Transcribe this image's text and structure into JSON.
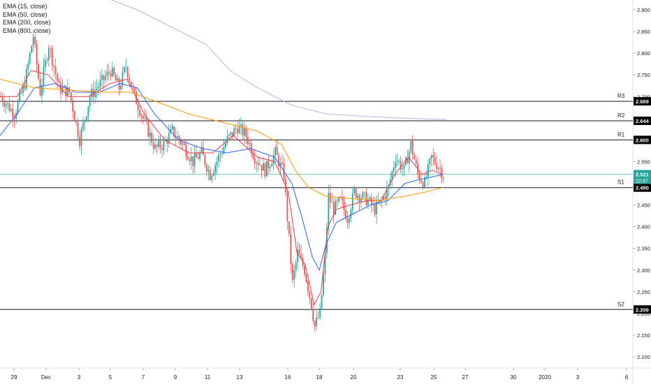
{
  "legend": [
    "EMA (15, close)",
    "EMA (50, close)",
    "EMA (200, close)",
    "EMA (800, close)"
  ],
  "chart_data": {
    "type": "candlestick",
    "ylim": [
      2.07,
      2.93
    ],
    "y_ticks": [
      "2.100",
      "2.150",
      "2.200",
      "2.250",
      "2.300",
      "2.350",
      "2.400",
      "2.450",
      "2.500",
      "2.550",
      "2.600",
      "2.650",
      "2.700",
      "2.750",
      "2.800",
      "2.850",
      "2.900"
    ],
    "x_ticks": [
      "29",
      "Dec",
      "3",
      "5",
      "7",
      "9",
      "11",
      "13",
      "16",
      "18",
      "20",
      "23",
      "25",
      "27",
      "30",
      "2020",
      "3",
      "6"
    ],
    "grid": false,
    "legend_position": "top-left",
    "levels": [
      {
        "name": "R3",
        "value": 2.689,
        "label": "2.689"
      },
      {
        "name": "R2",
        "value": 2.644,
        "label": "2.644"
      },
      {
        "name": "R1",
        "value": 2.6,
        "label": "2.600"
      },
      {
        "name": "S1",
        "value": 2.49,
        "label": "2.490"
      },
      {
        "name": "S2",
        "value": 2.209,
        "label": "2.209"
      }
    ],
    "last_price": {
      "value": 2.521,
      "label": "2.521",
      "countdown": "22:37"
    },
    "price_path": [
      [
        0,
        2.7
      ],
      [
        8,
        2.66
      ],
      [
        14,
        2.73
      ],
      [
        19,
        2.84
      ],
      [
        23,
        2.71
      ],
      [
        28,
        2.82
      ],
      [
        34,
        2.72
      ],
      [
        40,
        2.71
      ],
      [
        46,
        2.6
      ],
      [
        52,
        2.7
      ],
      [
        58,
        2.73
      ],
      [
        64,
        2.76
      ],
      [
        69,
        2.72
      ],
      [
        73,
        2.77
      ],
      [
        78,
        2.7
      ],
      [
        84,
        2.64
      ],
      [
        90,
        2.58
      ],
      [
        95,
        2.59
      ],
      [
        100,
        2.62
      ],
      [
        106,
        2.59
      ],
      [
        112,
        2.55
      ],
      [
        117,
        2.57
      ],
      [
        122,
        2.52
      ],
      [
        127,
        2.56
      ],
      [
        132,
        2.6
      ],
      [
        138,
        2.63
      ],
      [
        143,
        2.61
      ],
      [
        148,
        2.56
      ],
      [
        154,
        2.53
      ],
      [
        160,
        2.57
      ],
      [
        165,
        2.52
      ],
      [
        170,
        2.27
      ],
      [
        173,
        2.34
      ],
      [
        177,
        2.3
      ],
      [
        181,
        2.22
      ],
      [
        183,
        2.17
      ],
      [
        186,
        2.2
      ],
      [
        189,
        2.33
      ],
      [
        191,
        2.47
      ],
      [
        194,
        2.44
      ],
      [
        198,
        2.46
      ],
      [
        202,
        2.42
      ],
      [
        206,
        2.48
      ],
      [
        210,
        2.47
      ],
      [
        214,
        2.46
      ],
      [
        218,
        2.44
      ],
      [
        222,
        2.46
      ],
      [
        226,
        2.49
      ],
      [
        230,
        2.56
      ],
      [
        235,
        2.53
      ],
      [
        239,
        2.59
      ],
      [
        243,
        2.52
      ],
      [
        247,
        2.5
      ],
      [
        251,
        2.56
      ],
      [
        255,
        2.54
      ],
      [
        258,
        2.52
      ]
    ],
    "series": [
      {
        "name": "EMA (15, close)",
        "color": "#f23645",
        "points": [
          [
            0,
            2.7
          ],
          [
            10,
            2.7
          ],
          [
            18,
            2.76
          ],
          [
            28,
            2.75
          ],
          [
            40,
            2.7
          ],
          [
            52,
            2.7
          ],
          [
            64,
            2.73
          ],
          [
            74,
            2.74
          ],
          [
            84,
            2.66
          ],
          [
            96,
            2.6
          ],
          [
            110,
            2.57
          ],
          [
            124,
            2.57
          ],
          [
            136,
            2.61
          ],
          [
            150,
            2.56
          ],
          [
            160,
            2.55
          ],
          [
            168,
            2.48
          ],
          [
            173,
            2.34
          ],
          [
            178,
            2.31
          ],
          [
            183,
            2.22
          ],
          [
            187,
            2.25
          ],
          [
            191,
            2.4
          ],
          [
            196,
            2.44
          ],
          [
            204,
            2.45
          ],
          [
            214,
            2.46
          ],
          [
            222,
            2.46
          ],
          [
            230,
            2.52
          ],
          [
            238,
            2.56
          ],
          [
            246,
            2.52
          ],
          [
            252,
            2.53
          ],
          [
            258,
            2.52
          ]
        ]
      },
      {
        "name": "EMA (50, close)",
        "color": "#2962ff",
        "points": [
          [
            0,
            2.61
          ],
          [
            10,
            2.66
          ],
          [
            20,
            2.72
          ],
          [
            32,
            2.73
          ],
          [
            44,
            2.71
          ],
          [
            58,
            2.71
          ],
          [
            70,
            2.73
          ],
          [
            80,
            2.72
          ],
          [
            90,
            2.66
          ],
          [
            104,
            2.6
          ],
          [
            118,
            2.58
          ],
          [
            132,
            2.57
          ],
          [
            146,
            2.58
          ],
          [
            160,
            2.56
          ],
          [
            170,
            2.5
          ],
          [
            176,
            2.42
          ],
          [
            182,
            2.33
          ],
          [
            186,
            2.3
          ],
          [
            190,
            2.36
          ],
          [
            196,
            2.41
          ],
          [
            206,
            2.43
          ],
          [
            216,
            2.45
          ],
          [
            226,
            2.46
          ],
          [
            236,
            2.5
          ],
          [
            246,
            2.51
          ],
          [
            258,
            2.52
          ]
        ]
      },
      {
        "name": "EMA (200, close)",
        "color": "#ff9800",
        "points": [
          [
            0,
            2.74
          ],
          [
            20,
            2.72
          ],
          [
            40,
            2.715
          ],
          [
            60,
            2.71
          ],
          [
            76,
            2.71
          ],
          [
            90,
            2.69
          ],
          [
            110,
            2.66
          ],
          [
            130,
            2.64
          ],
          [
            150,
            2.62
          ],
          [
            164,
            2.59
          ],
          [
            172,
            2.53
          ],
          [
            180,
            2.49
          ],
          [
            190,
            2.47
          ],
          [
            204,
            2.465
          ],
          [
            220,
            2.46
          ],
          [
            236,
            2.47
          ],
          [
            248,
            2.48
          ],
          [
            258,
            2.49
          ]
        ]
      },
      {
        "name": "EMA (800, close)",
        "color": "#b2b5e6",
        "points": [
          [
            60,
            2.93
          ],
          [
            80,
            2.9
          ],
          [
            100,
            2.86
          ],
          [
            120,
            2.82
          ],
          [
            134,
            2.76
          ],
          [
            150,
            2.72
          ],
          [
            170,
            2.68
          ],
          [
            190,
            2.66
          ],
          [
            210,
            2.655
          ],
          [
            230,
            2.651
          ],
          [
            260,
            2.647
          ]
        ]
      }
    ]
  },
  "colors": {
    "up": "#26a69a",
    "down": "#ef5350",
    "last_price": "#26a69a",
    "level_line": "#131722",
    "label_bg": "#000000",
    "axis_text": "#131722"
  }
}
